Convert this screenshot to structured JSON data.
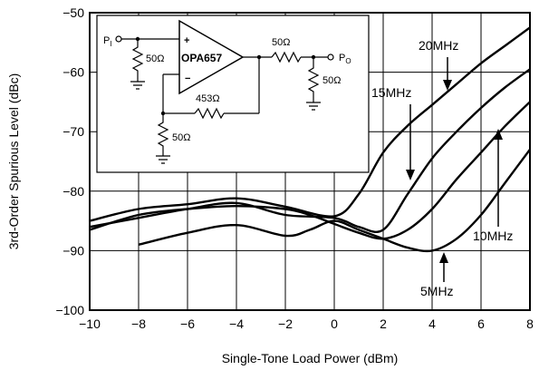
{
  "chart_data": {
    "type": "line",
    "title": "",
    "xlabel": "Single-Tone Load Power (dBm)",
    "ylabel": "3rd-Order Spurious Level (dBc)",
    "xlim": [
      -10,
      8
    ],
    "ylim": [
      -100,
      -50
    ],
    "xticks": [
      "−10",
      "−8",
      "−6",
      "−4",
      "−2",
      "0",
      "2",
      "4",
      "6",
      "8"
    ],
    "yticks": [
      "−50",
      "−60",
      "−70",
      "−80",
      "−90",
      "−100"
    ],
    "grid": true,
    "series": [
      {
        "name": "20MHz",
        "x": [
          -10,
          -8,
          -6,
          -4,
          -2,
          0,
          1,
          2,
          3,
          4,
          5,
          6,
          7,
          8
        ],
        "y": [
          -85,
          -83,
          -82.2,
          -81.2,
          -82.6,
          -84.2,
          -80.5,
          -73.5,
          -69,
          -65.5,
          -62,
          -58.5,
          -55.5,
          -52.5
        ]
      },
      {
        "name": "15MHz",
        "x": [
          -10,
          -8,
          -6,
          -4,
          -2,
          0,
          1,
          2,
          3,
          4,
          5,
          6,
          7,
          8
        ],
        "y": [
          -86,
          -84.5,
          -83,
          -82,
          -84,
          -84.5,
          -86,
          -86.5,
          -80.5,
          -74.5,
          -70,
          -66,
          -62.5,
          -59.5
        ]
      },
      {
        "name": "10MHz",
        "x": [
          -10,
          -8,
          -6,
          -4,
          -2,
          -1,
          0,
          1,
          2,
          3,
          4,
          5,
          6,
          7,
          8
        ],
        "y": [
          -86.5,
          -84,
          -83,
          -82.5,
          -83,
          -84,
          -85.5,
          -87,
          -88,
          -86.5,
          -83,
          -78,
          -73.5,
          -69,
          -65
        ]
      },
      {
        "name": "5MHz",
        "x": [
          -8,
          -6,
          -4,
          -2,
          -1,
          0,
          1,
          2,
          3,
          4,
          5,
          6,
          7,
          8
        ],
        "y": [
          -89,
          -87,
          -85.7,
          -87.5,
          -86.5,
          -85,
          -86.5,
          -88,
          -89.5,
          -90,
          -88,
          -84,
          -78.5,
          -73
        ]
      }
    ],
    "annotations": [
      "20MHz",
      "15MHz",
      "10MHz",
      "5MHz"
    ]
  },
  "inset": {
    "pi": "P",
    "pi_sub": "I",
    "po": "P",
    "po_sub": "O",
    "amp": "OPA657",
    "plus": "+",
    "minus": "−",
    "r_in": "50Ω",
    "r_out": "50Ω",
    "r_load": "50Ω",
    "r_feedback": "453Ω",
    "r_gain": "50Ω"
  }
}
